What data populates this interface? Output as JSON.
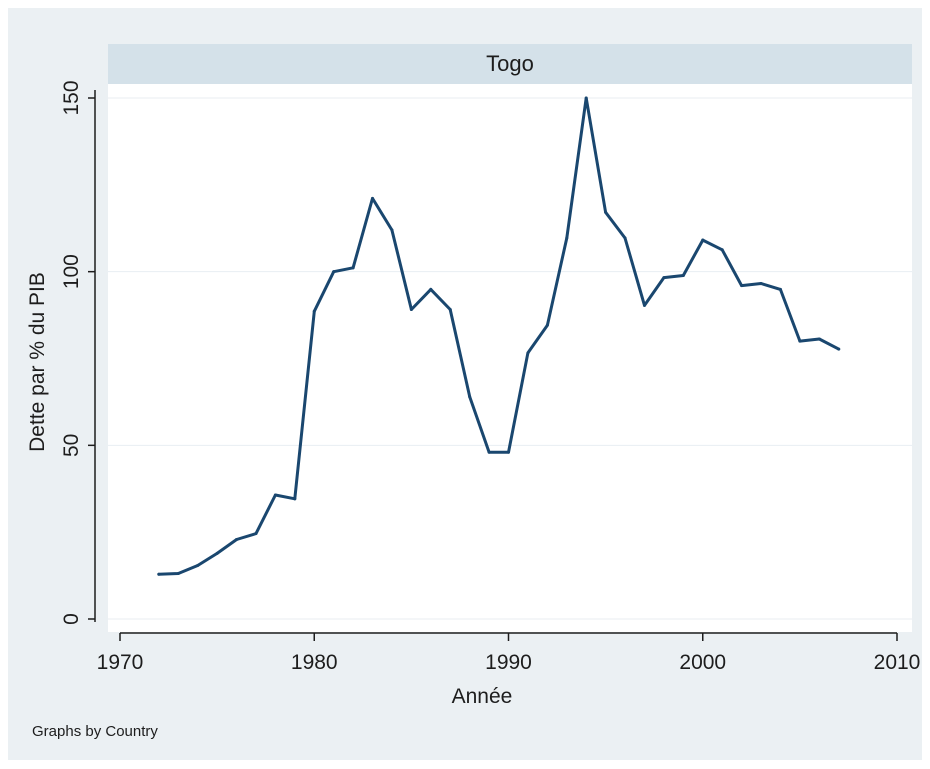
{
  "chart_data": {
    "type": "line",
    "title": "Togo",
    "xlabel": "Année",
    "ylabel": "Dette par % du PIB",
    "note": "Graphs by Country",
    "xlim": [
      1970,
      2010
    ],
    "ylim": [
      0,
      150
    ],
    "xticks": [
      "1970",
      "1980",
      "1990",
      "2000",
      "2010"
    ],
    "yticks": [
      "0",
      "50",
      "100",
      "150"
    ],
    "grid": true,
    "x": [
      1972,
      1973,
      1974,
      1975,
      1976,
      1977,
      1978,
      1979,
      1980,
      1981,
      1982,
      1983,
      1984,
      1985,
      1986,
      1987,
      1988,
      1989,
      1990,
      1991,
      1992,
      1993,
      1994,
      1995,
      1996,
      1997,
      1998,
      1999,
      2000,
      2001,
      2002,
      2003,
      2004,
      2005,
      2006,
      2007
    ],
    "values": [
      12.9,
      13.1,
      15.4,
      18.9,
      22.9,
      24.6,
      35.7,
      34.6,
      88.6,
      100.0,
      101.1,
      121.1,
      112.0,
      89.1,
      94.9,
      89.1,
      64.0,
      48.0,
      48.0,
      76.6,
      84.6,
      109.7,
      150.0,
      117.1,
      109.7,
      90.3,
      98.3,
      98.9,
      109.1,
      106.3,
      96.0,
      96.6,
      94.9,
      80.0,
      80.6,
      77.7
    ],
    "colors": {
      "line": "#1a476f",
      "panel": "#ffffff",
      "background": "#ebf0f3",
      "strip": "#d4e1e9",
      "grid": "#e8eef2"
    }
  }
}
